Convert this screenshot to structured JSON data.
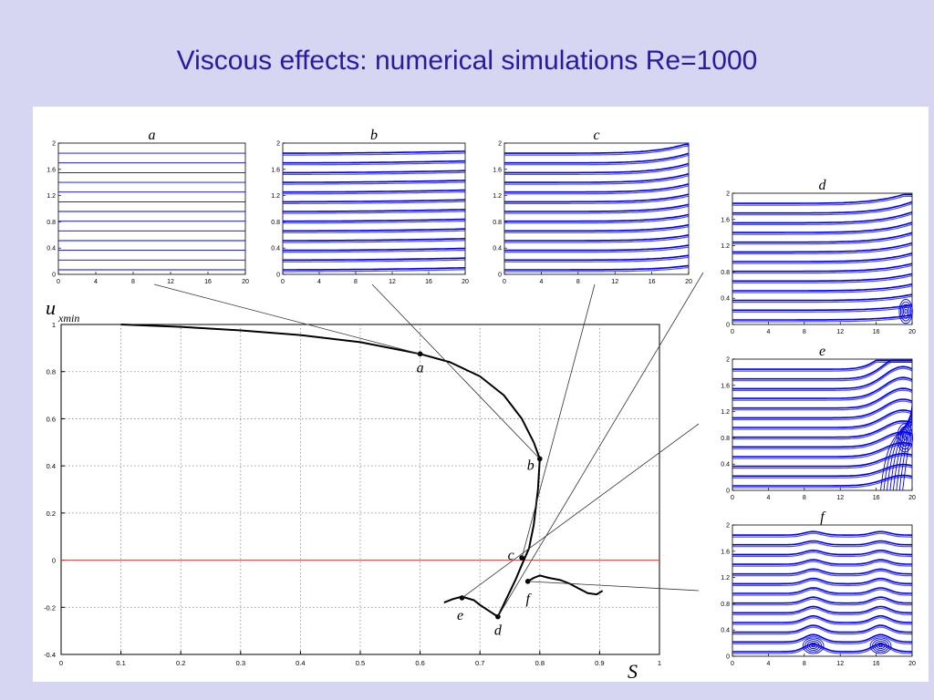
{
  "title": "Viscous effects: numerical simulations Re=1000",
  "colors": {
    "background": "#d6d6f2",
    "title": "#2a1aa0",
    "streamline": "#0000ee",
    "curve": "#000000",
    "zero_line": "#e04040"
  },
  "chart_data": [
    {
      "id": "main",
      "type": "line",
      "xlabel": "S",
      "ylabel": "u",
      "ylabel_sub": "xmin",
      "xlim": [
        0,
        1
      ],
      "ylim": [
        -0.4,
        1
      ],
      "xticks": [
        0,
        0.1,
        0.2,
        0.3,
        0.4,
        0.5,
        0.6,
        0.7,
        0.8,
        0.9,
        1
      ],
      "yticks": [
        -0.4,
        -0.2,
        0,
        0.2,
        0.4,
        0.6,
        0.8,
        1
      ],
      "grid": true,
      "reference_line_y": 0,
      "series": [
        {
          "x": [
            0.1,
            0.2,
            0.3,
            0.4,
            0.5,
            0.6,
            0.65,
            0.7,
            0.74,
            0.77,
            0.79,
            0.8,
            0.797,
            0.79,
            0.782,
            0.77,
            0.76,
            0.745,
            0.73,
            0.715,
            0.7,
            0.69,
            0.67,
            0.655,
            0.64
          ],
          "y": [
            1.0,
            0.99,
            0.975,
            0.955,
            0.925,
            0.875,
            0.84,
            0.78,
            0.7,
            0.6,
            0.5,
            0.43,
            0.3,
            0.15,
            0.05,
            -0.02,
            -0.08,
            -0.16,
            -0.24,
            -0.215,
            -0.19,
            -0.17,
            -0.155,
            -0.165,
            -0.18
          ]
        },
        {
          "x": [
            0.78,
            0.79,
            0.8,
            0.815,
            0.835,
            0.85,
            0.865,
            0.88,
            0.895,
            0.905
          ],
          "y": [
            -0.09,
            -0.075,
            -0.065,
            -0.075,
            -0.085,
            -0.1,
            -0.12,
            -0.14,
            -0.145,
            -0.13
          ]
        }
      ],
      "points": [
        {
          "label": "a",
          "x": 0.6,
          "y": 0.875
        },
        {
          "label": "b",
          "x": 0.8,
          "y": 0.43
        },
        {
          "label": "c",
          "x": 0.77,
          "y": 0.01
        },
        {
          "label": "d",
          "x": 0.73,
          "y": -0.24
        },
        {
          "label": "e",
          "x": 0.67,
          "y": -0.16
        },
        {
          "label": "f",
          "x": 0.78,
          "y": -0.09
        }
      ]
    },
    {
      "id": "a",
      "type": "line",
      "title": "a",
      "xlim": [
        0,
        20
      ],
      "ylim": [
        0,
        2
      ],
      "xticks": [
        0,
        4,
        8,
        12,
        16,
        20
      ],
      "yticks": [
        0,
        0.4,
        0.8,
        1.2,
        1.6,
        2
      ]
    },
    {
      "id": "b",
      "type": "line",
      "title": "b",
      "xlim": [
        0,
        20
      ],
      "ylim": [
        0,
        2
      ],
      "xticks": [
        0,
        4,
        8,
        12,
        16,
        20
      ],
      "yticks": [
        0,
        0.4,
        0.8,
        1.2,
        1.6,
        2
      ]
    },
    {
      "id": "c",
      "type": "line",
      "title": "c",
      "xlim": [
        0,
        20
      ],
      "ylim": [
        0,
        2
      ],
      "xticks": [
        0,
        4,
        8,
        12,
        16,
        20
      ],
      "yticks": [
        0,
        0.4,
        0.8,
        1.2,
        1.6,
        2
      ]
    },
    {
      "id": "d",
      "type": "line",
      "title": "d",
      "xlim": [
        0,
        20
      ],
      "ylim": [
        0,
        2
      ],
      "xticks": [
        0,
        4,
        8,
        12,
        16,
        20
      ],
      "yticks": [
        0,
        0.4,
        0.8,
        1.2,
        1.6,
        2
      ]
    },
    {
      "id": "e",
      "type": "line",
      "title": "e",
      "xlim": [
        0,
        20
      ],
      "ylim": [
        0,
        2
      ],
      "xticks": [
        0,
        4,
        8,
        12,
        16,
        20
      ],
      "yticks": [
        0,
        0.4,
        0.8,
        1.2,
        1.6,
        2
      ]
    },
    {
      "id": "f",
      "type": "line",
      "title": "f",
      "xlim": [
        0,
        20
      ],
      "ylim": [
        0,
        2
      ],
      "xticks": [
        0,
        4,
        8,
        12,
        16,
        20
      ],
      "yticks": [
        0,
        0.4,
        0.8,
        1.2,
        1.6,
        2
      ]
    }
  ]
}
